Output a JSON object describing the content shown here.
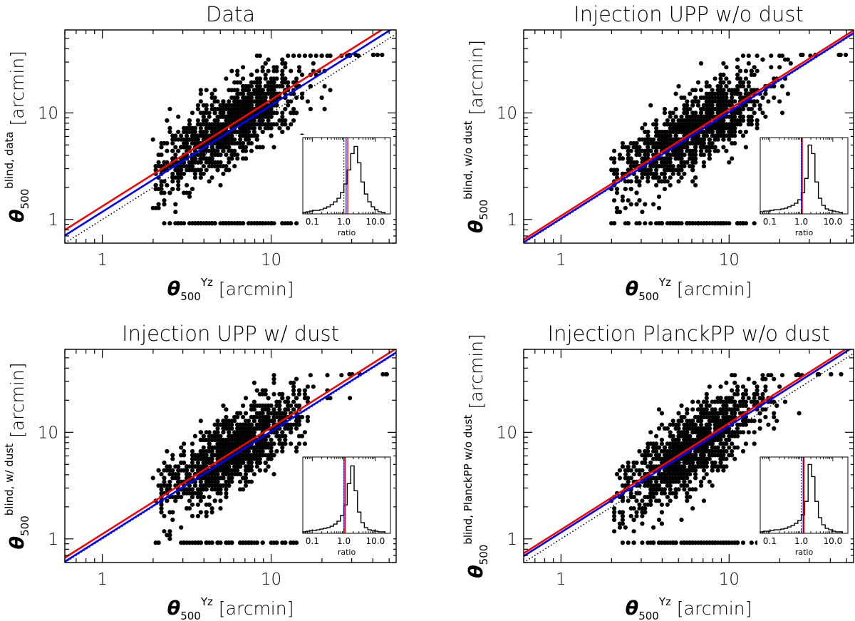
{
  "chart_data": [
    {
      "type": "scatter",
      "title": "Data",
      "xlabel": {
        "sym": "θ",
        "sub": "500",
        "sup": "Yz",
        "unit": "[arcmin]"
      },
      "ylabel": {
        "sym": "θ",
        "sub": "500",
        "sup": "blind, data",
        "unit": "[arcmin]"
      },
      "xscale": "log",
      "yscale": "log",
      "xlim": [
        0.6,
        55
      ],
      "ylim": [
        0.6,
        60
      ],
      "xticks": [
        {
          "v": 1,
          "label": "1"
        },
        {
          "v": 10,
          "label": "10"
        }
      ],
      "yticks": [
        {
          "v": 1,
          "label": "1"
        },
        {
          "v": 10,
          "label": "10"
        }
      ],
      "lines": [
        {
          "color": "#000000",
          "style": "dotted",
          "slope": 1.0,
          "intercept": 1.0
        },
        {
          "color": "#0000ff",
          "style": "solid",
          "slope": 1.0,
          "intercept": 1.18
        },
        {
          "color": "#ff0000",
          "style": "solid",
          "slope": 1.0,
          "intercept": 1.33
        }
      ],
      "seed": 11,
      "scatter": {
        "n": 1300,
        "xmu": 1.45,
        "xsig": 0.42,
        "offset": 0.12,
        "ysig": 0.42,
        "floor": 0.93,
        "ymax": 35
      },
      "inset": {
        "xlabel": "ratio",
        "xticks": [
          {
            "v": 0.1,
            "label": "0.1"
          },
          {
            "v": 1,
            "label": "1.0"
          },
          {
            "v": 10,
            "label": "10.0"
          }
        ],
        "xlim": [
          0.05,
          30
        ],
        "hist": [
          0.02,
          0.03,
          0.04,
          0.05,
          0.05,
          0.06,
          0.08,
          0.1,
          0.13,
          0.17,
          0.22,
          0.3,
          0.42,
          0.62,
          0.85,
          0.95,
          0.72,
          0.45,
          0.28,
          0.17,
          0.1,
          0.06,
          0.03,
          0.02
        ],
        "hist_range": [
          0.05,
          20
        ],
        "vlines": [
          {
            "color": "#000000",
            "style": "dotted",
            "x": 1.0
          },
          {
            "color": "#0000ff",
            "style": "solid",
            "x": 1.18
          },
          {
            "color": "#ff0000",
            "style": "solid",
            "x": 1.33
          }
        ]
      }
    },
    {
      "type": "scatter",
      "title": "Injection UPP w/o dust",
      "xlabel": {
        "sym": "θ",
        "sub": "500",
        "sup": "Yz",
        "unit": "[arcmin]"
      },
      "ylabel": {
        "sym": "θ",
        "sub": "500",
        "sup": "blind, w/o dust",
        "unit": "[arcmin]"
      },
      "xscale": "log",
      "yscale": "log",
      "xlim": [
        0.6,
        55
      ],
      "ylim": [
        0.6,
        60
      ],
      "xticks": [
        {
          "v": 1,
          "label": "1"
        },
        {
          "v": 10,
          "label": "10"
        }
      ],
      "yticks": [
        {
          "v": 1,
          "label": "1"
        },
        {
          "v": 10,
          "label": "10"
        }
      ],
      "lines": [
        {
          "color": "#000000",
          "style": "dotted",
          "slope": 1.0,
          "intercept": 1.0
        },
        {
          "color": "#0000ff",
          "style": "solid",
          "slope": 1.0,
          "intercept": 1.02
        },
        {
          "color": "#ff0000",
          "style": "solid",
          "slope": 1.0,
          "intercept": 1.08
        }
      ],
      "seed": 23,
      "scatter": {
        "n": 1300,
        "xmu": 1.45,
        "xsig": 0.42,
        "offset": 0.04,
        "ysig": 0.42,
        "floor": 0.93,
        "ymax": 35
      },
      "inset": {
        "xlabel": "ratio",
        "xticks": [
          {
            "v": 0.1,
            "label": "0.1"
          },
          {
            "v": 1,
            "label": "1.0"
          },
          {
            "v": 10,
            "label": "10.0"
          }
        ],
        "xlim": [
          0.05,
          30
        ],
        "hist": [
          0.03,
          0.04,
          0.04,
          0.05,
          0.06,
          0.06,
          0.07,
          0.08,
          0.1,
          0.12,
          0.15,
          0.2,
          0.3,
          0.5,
          0.97,
          0.85,
          0.45,
          0.22,
          0.12,
          0.07,
          0.05,
          0.04,
          0.03,
          0.02
        ],
        "hist_range": [
          0.05,
          20
        ],
        "vlines": [
          {
            "color": "#000000",
            "style": "dotted",
            "x": 1.0
          },
          {
            "color": "#0000ff",
            "style": "solid",
            "x": 1.02
          },
          {
            "color": "#ff0000",
            "style": "solid",
            "x": 1.08
          }
        ]
      }
    },
    {
      "type": "scatter",
      "title": "Injection UPP w/ dust",
      "xlabel": {
        "sym": "θ",
        "sub": "500",
        "sup": "Yz",
        "unit": "[arcmin]"
      },
      "ylabel": {
        "sym": "θ",
        "sub": "500",
        "sup": "blind, w/ dust",
        "unit": "[arcmin]"
      },
      "xscale": "log",
      "yscale": "log",
      "xlim": [
        0.6,
        55
      ],
      "ylim": [
        0.6,
        60
      ],
      "xticks": [
        {
          "v": 1,
          "label": "1"
        },
        {
          "v": 10,
          "label": "10"
        }
      ],
      "yticks": [
        {
          "v": 1,
          "label": "1"
        },
        {
          "v": 10,
          "label": "10"
        }
      ],
      "lines": [
        {
          "color": "#000000",
          "style": "dotted",
          "slope": 1.0,
          "intercept": 1.0
        },
        {
          "color": "#0000ff",
          "style": "solid",
          "slope": 1.0,
          "intercept": 1.02
        },
        {
          "color": "#ff0000",
          "style": "solid",
          "slope": 1.0,
          "intercept": 1.11
        }
      ],
      "seed": 37,
      "scatter": {
        "n": 1300,
        "xmu": 1.45,
        "xsig": 0.42,
        "offset": 0.05,
        "ysig": 0.42,
        "floor": 0.93,
        "ymax": 35
      },
      "inset": {
        "xlabel": "ratio",
        "xticks": [
          {
            "v": 0.1,
            "label": "0.1"
          },
          {
            "v": 1,
            "label": "1.0"
          },
          {
            "v": 10,
            "label": "10.0"
          }
        ],
        "xlim": [
          0.05,
          30
        ],
        "hist": [
          0.02,
          0.03,
          0.04,
          0.04,
          0.05,
          0.06,
          0.07,
          0.08,
          0.1,
          0.13,
          0.17,
          0.25,
          0.4,
          0.7,
          0.95,
          0.6,
          0.3,
          0.15,
          0.08,
          0.05,
          0.04,
          0.03,
          0.02,
          0.02
        ],
        "hist_range": [
          0.05,
          20
        ],
        "vlines": [
          {
            "color": "#000000",
            "style": "dotted",
            "x": 1.0
          },
          {
            "color": "#0000ff",
            "style": "solid",
            "x": 1.02
          },
          {
            "color": "#ff0000",
            "style": "solid",
            "x": 1.11
          }
        ]
      }
    },
    {
      "type": "scatter",
      "title": "Injection PlanckPP w/o dust",
      "xlabel": {
        "sym": "θ",
        "sub": "500",
        "sup": "Yz",
        "unit": "[arcmin]"
      },
      "ylabel": {
        "sym": "θ",
        "sub": "500",
        "sup": "blind, PlanckPP w/o dust",
        "unit": "[arcmin]"
      },
      "xscale": "log",
      "yscale": "log",
      "xlim": [
        0.6,
        55
      ],
      "ylim": [
        0.6,
        60
      ],
      "xticks": [
        {
          "v": 1,
          "label": "1"
        },
        {
          "v": 10,
          "label": "10"
        }
      ],
      "yticks": [
        {
          "v": 1,
          "label": "1"
        },
        {
          "v": 10,
          "label": "10"
        }
      ],
      "lines": [
        {
          "color": "#000000",
          "style": "dotted",
          "slope": 1.0,
          "intercept": 1.0
        },
        {
          "color": "#0000ff",
          "style": "solid",
          "slope": 1.0,
          "intercept": 1.15
        },
        {
          "color": "#ff0000",
          "style": "solid",
          "slope": 1.0,
          "intercept": 1.22
        }
      ],
      "seed": 51,
      "scatter": {
        "n": 1300,
        "xmu": 1.45,
        "xsig": 0.42,
        "offset": 0.08,
        "ysig": 0.42,
        "floor": 0.93,
        "ymax": 35
      },
      "inset": {
        "xlabel": "ratio",
        "xticks": [
          {
            "v": 0.1,
            "label": "0.1"
          },
          {
            "v": 1,
            "label": "1.0"
          },
          {
            "v": 10,
            "label": "10.0"
          }
        ],
        "xlim": [
          0.05,
          30
        ],
        "hist": [
          0.02,
          0.03,
          0.03,
          0.04,
          0.05,
          0.05,
          0.06,
          0.07,
          0.09,
          0.11,
          0.14,
          0.18,
          0.26,
          0.45,
          0.97,
          0.8,
          0.45,
          0.22,
          0.12,
          0.07,
          0.05,
          0.03,
          0.02,
          0.02
        ],
        "hist_range": [
          0.05,
          20
        ],
        "vlines": [
          {
            "color": "#000000",
            "style": "dotted",
            "x": 1.0
          },
          {
            "color": "#0000ff",
            "style": "solid",
            "x": 1.15
          },
          {
            "color": "#ff0000",
            "style": "solid",
            "x": 1.22
          }
        ]
      }
    }
  ]
}
